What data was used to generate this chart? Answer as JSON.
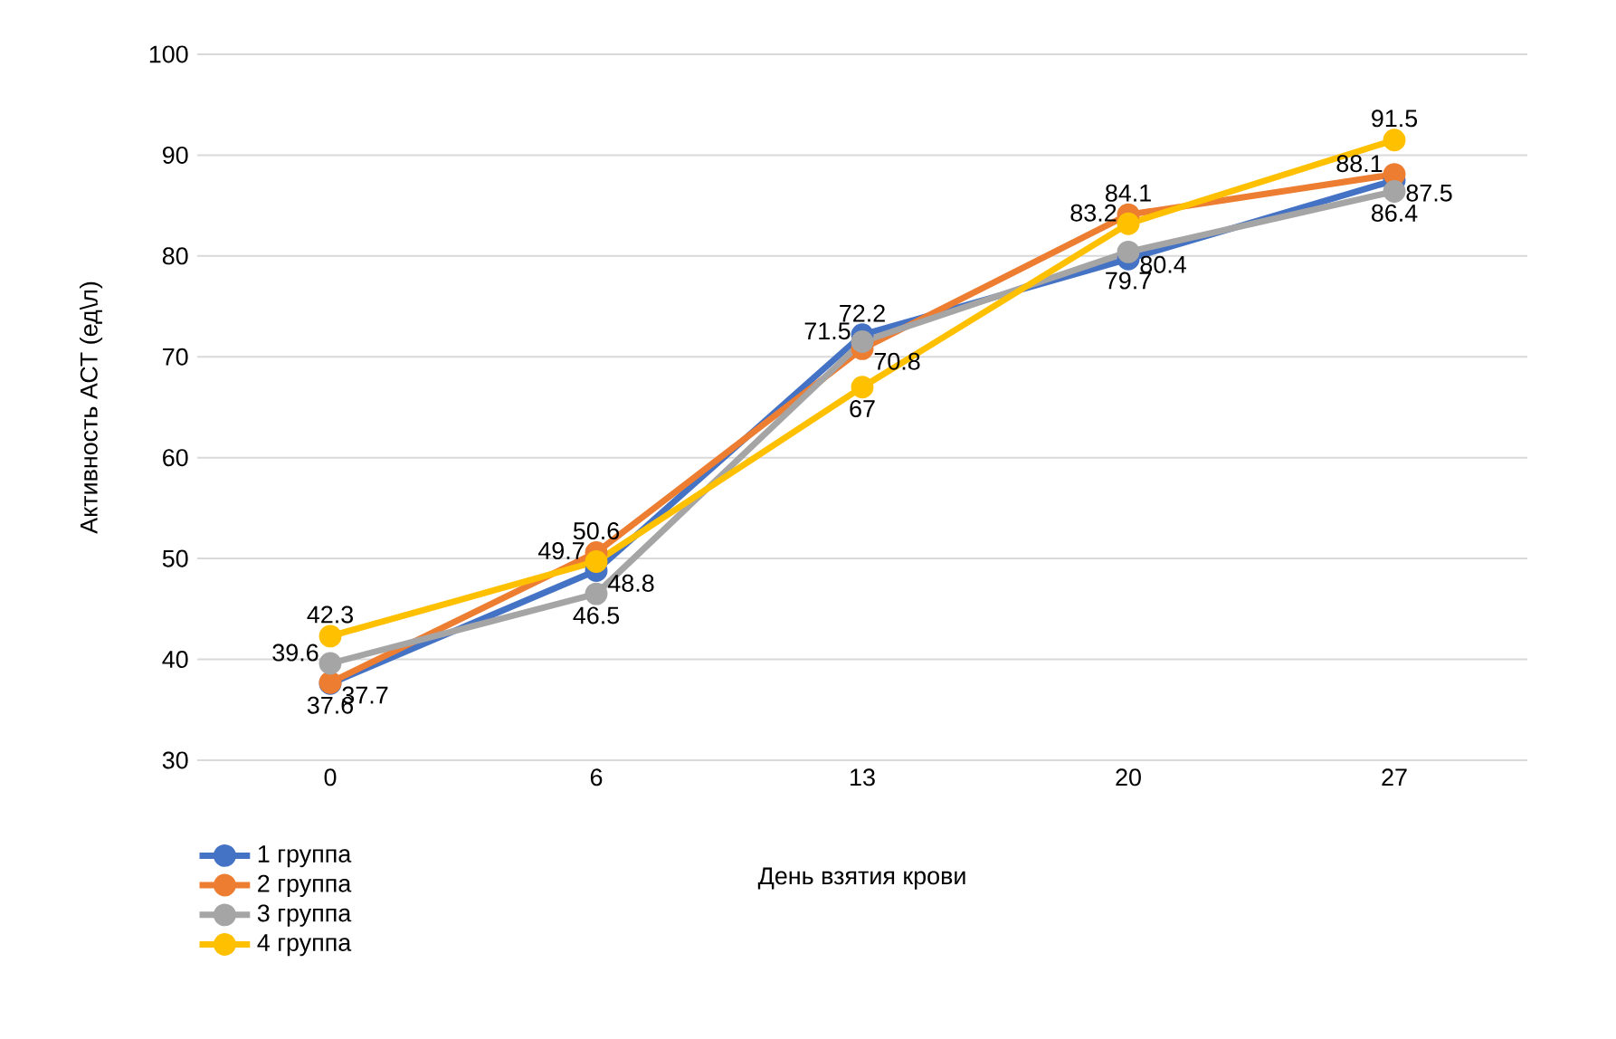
{
  "chart_data": {
    "type": "line",
    "categories": [
      "0",
      "6",
      "13",
      "20",
      "27"
    ],
    "xlabel": "День взятия крови",
    "ylabel": "Активность АСТ (ед\\л)",
    "series": [
      {
        "name": "1 группа",
        "color": "#4472c4",
        "values": [
          37.6,
          48.8,
          72.2,
          79.7,
          87.5
        ]
      },
      {
        "name": "2 группа",
        "color": "#ed7d31",
        "values": [
          37.7,
          50.6,
          70.8,
          84.1,
          88.1
        ]
      },
      {
        "name": "3 группа",
        "color": "#a5a5a5",
        "values": [
          39.6,
          46.5,
          71.5,
          80.4,
          86.4
        ]
      },
      {
        "name": "4 группа",
        "color": "#ffc000",
        "values": [
          42.3,
          49.7,
          67,
          83.2,
          91.5
        ]
      }
    ],
    "ylim": [
      30,
      100
    ],
    "yticks": [
      30,
      40,
      50,
      60,
      70,
      80,
      90,
      100
    ],
    "grid": "y",
    "legend": "bottom left",
    "marker": "circle",
    "line_style": "solid",
    "data_labels": true
  }
}
